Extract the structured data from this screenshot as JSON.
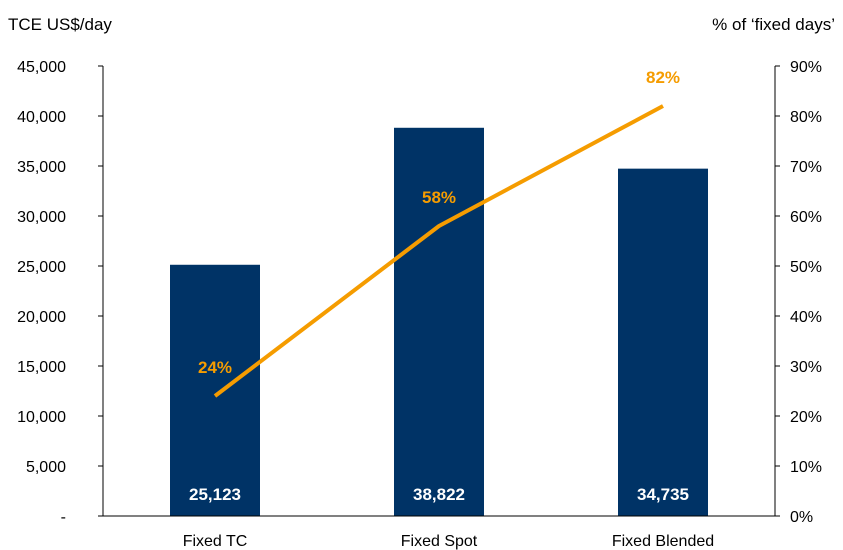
{
  "chart_data": {
    "type": "bar",
    "title": "",
    "left_axis_title": "TCE US$/day",
    "right_axis_title": "% of ‘fixed days’",
    "categories": [
      "Fixed TC",
      "Fixed Spot",
      "Fixed Blended"
    ],
    "bar_values": [
      25123,
      38822,
      34735
    ],
    "bar_labels": [
      "25,123",
      "38,822",
      "34,735"
    ],
    "line_values": [
      24,
      58,
      82
    ],
    "line_labels": [
      "24%",
      "58%",
      "82%"
    ],
    "y_left": {
      "min": 0,
      "max": 45000,
      "ticks": [
        "-",
        "5,000",
        "10,000",
        "15,000",
        "20,000",
        "25,000",
        "30,000",
        "35,000",
        "40,000",
        "45,000"
      ]
    },
    "y_right": {
      "min": 0,
      "max": 90,
      "ticks": [
        "0%",
        "10%",
        "20%",
        "30%",
        "40%",
        "50%",
        "60%",
        "70%",
        "80%",
        "90%"
      ]
    },
    "grid": false,
    "legend": "none",
    "colors": {
      "bar": "#003366",
      "line": "#F59C00",
      "axis": "#000000"
    }
  }
}
